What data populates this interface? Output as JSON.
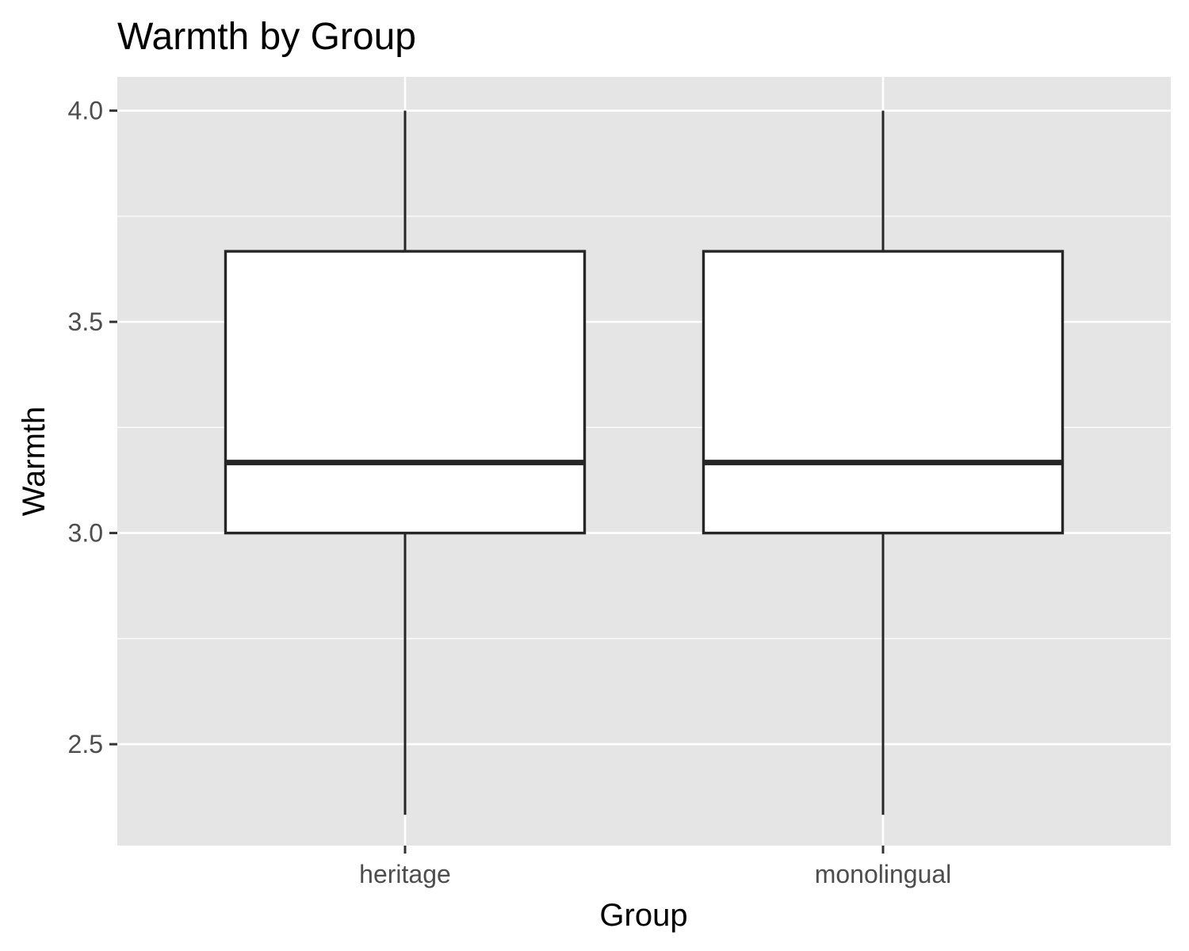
{
  "chart_data": {
    "type": "boxplot",
    "title": "Warmth by Group",
    "xlabel": "Group",
    "ylabel": "Warmth",
    "categories": [
      "heritage",
      "monolingual"
    ],
    "boxes": [
      {
        "category": "heritage",
        "whisker_low": 2.333,
        "q1": 3.0,
        "median": 3.167,
        "q3": 3.667,
        "whisker_high": 4.0
      },
      {
        "category": "monolingual",
        "whisker_low": 2.333,
        "q1": 3.0,
        "median": 3.167,
        "q3": 3.667,
        "whisker_high": 4.0
      }
    ],
    "y_ticks": [
      2.5,
      3.0,
      3.5,
      4.0
    ],
    "y_tick_labels": [
      "2.5",
      "3.0",
      "3.5",
      "4.0"
    ],
    "y_minor_ticks": [
      2.75,
      3.25,
      3.75
    ],
    "ylim": [
      2.26,
      4.08
    ],
    "grid": true,
    "colors": {
      "panel_background": "#e5e5e5",
      "grid": "#ffffff",
      "box_fill": "#ffffff",
      "box_stroke": "#262626",
      "tick": "#333333"
    }
  }
}
